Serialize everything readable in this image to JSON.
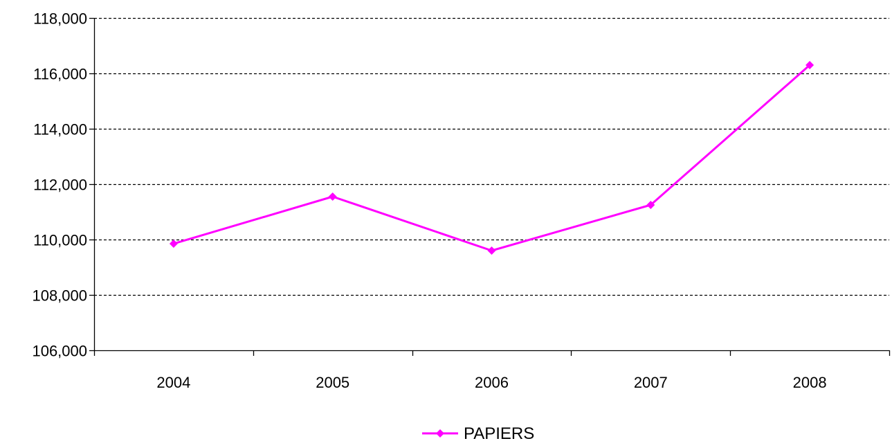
{
  "chart_data": {
    "type": "line",
    "title": "",
    "xlabel": "",
    "ylabel": "",
    "categories": [
      "2004",
      "2005",
      "2006",
      "2007",
      "2008"
    ],
    "series": [
      {
        "name": "PAPIERS",
        "values": [
          109850,
          111550,
          109600,
          111250,
          116300
        ],
        "color": "#ff00ff"
      }
    ],
    "ylim": [
      106000,
      118000
    ],
    "yticks": [
      106000,
      108000,
      110000,
      112000,
      114000,
      116000,
      118000
    ],
    "ytick_labels": [
      "106,000",
      "108,000",
      "110,000",
      "112,000",
      "114,000",
      "116,000",
      "118,000"
    ],
    "grid": "horizontal dashed",
    "legend_position": "bottom-center",
    "marker": "diamond"
  }
}
